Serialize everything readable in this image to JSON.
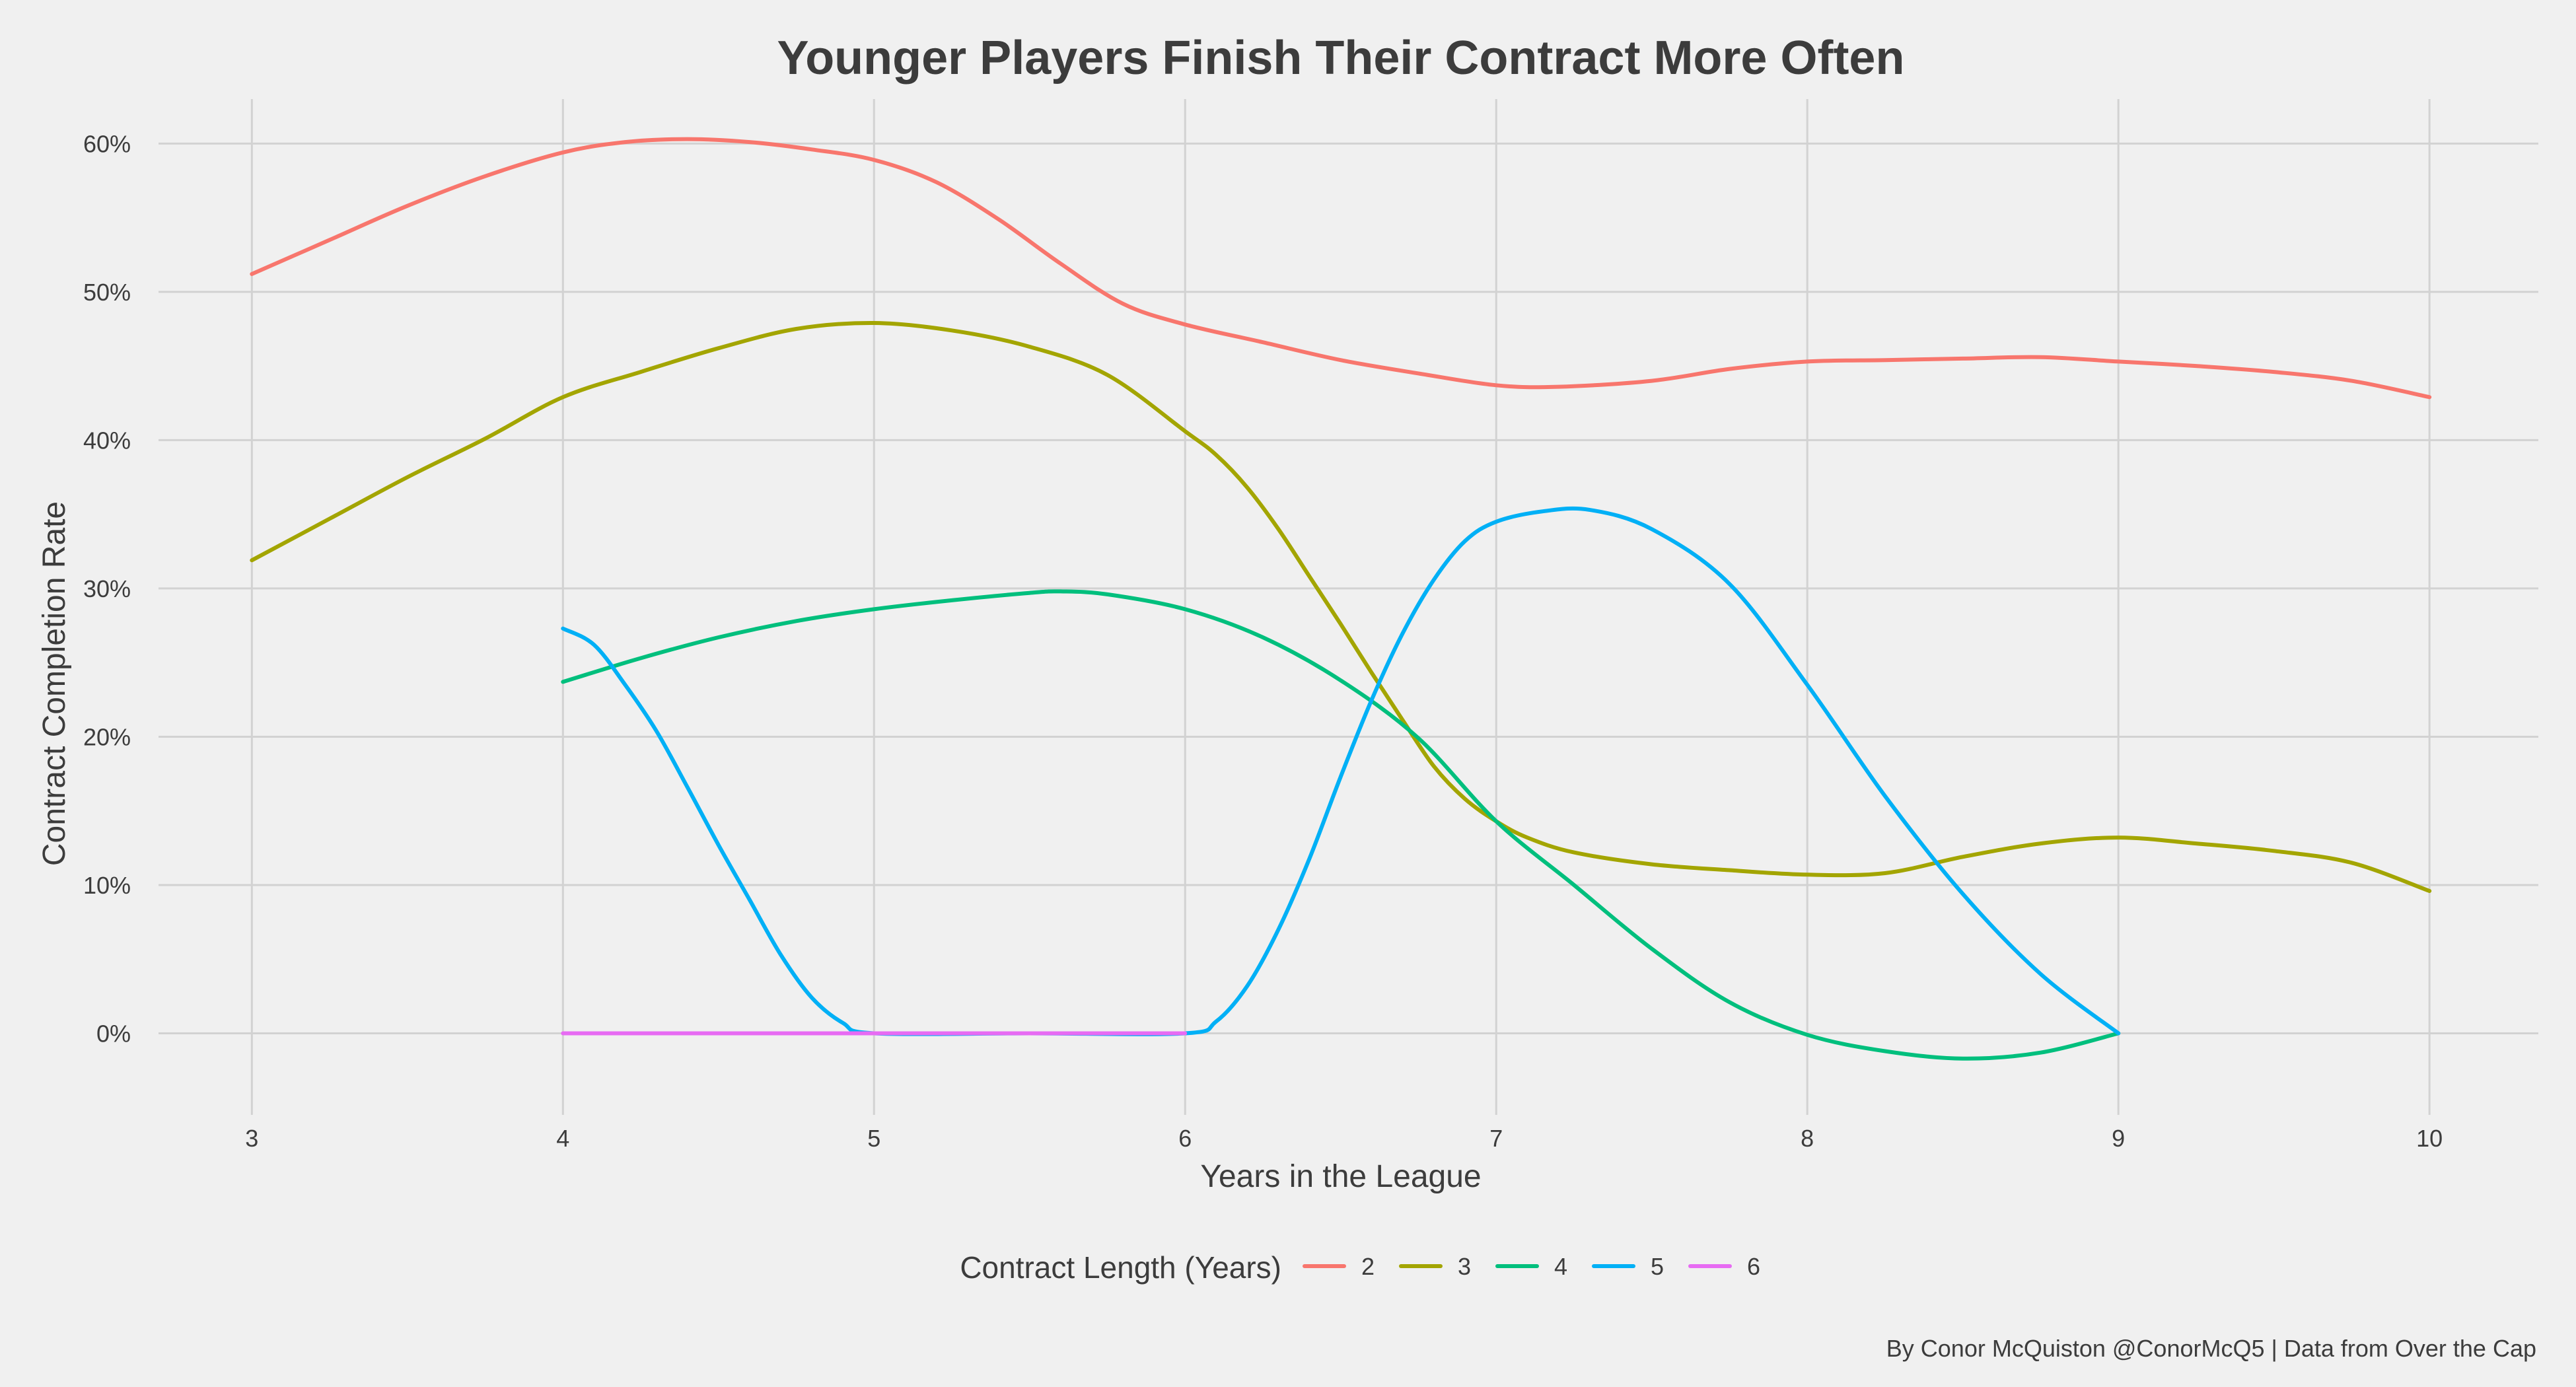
{
  "chart_data": {
    "type": "line",
    "title": "Younger Players Finish Their Contract More Often",
    "xlabel": "Years in the League",
    "ylabel": "Contract Completion Rate",
    "xlim": [
      2.7,
      10.35
    ],
    "ylim": [
      -0.055,
      0.63
    ],
    "x_ticks": [
      3,
      4,
      5,
      6,
      7,
      8,
      9,
      10
    ],
    "y_ticks": [
      0,
      0.1,
      0.2,
      0.3,
      0.4,
      0.5,
      0.6
    ],
    "y_tick_labels": [
      "0%",
      "10%",
      "20%",
      "30%",
      "40%",
      "50%",
      "60%"
    ],
    "grid": true,
    "legend": {
      "title": "Contract Length (Years)",
      "position": "bottom"
    },
    "series": [
      {
        "name": "2",
        "color": "#f8766d",
        "points": [
          [
            3,
            0.512
          ],
          [
            3.25,
            0.535
          ],
          [
            3.5,
            0.558
          ],
          [
            3.75,
            0.578
          ],
          [
            4,
            0.594
          ],
          [
            4.2,
            0.601
          ],
          [
            4.4,
            0.603
          ],
          [
            4.6,
            0.601
          ],
          [
            4.8,
            0.596
          ],
          [
            5,
            0.589
          ],
          [
            5.2,
            0.574
          ],
          [
            5.4,
            0.549
          ],
          [
            5.6,
            0.519
          ],
          [
            5.8,
            0.492
          ],
          [
            6,
            0.478
          ],
          [
            6.25,
            0.466
          ],
          [
            6.5,
            0.454
          ],
          [
            6.75,
            0.445
          ],
          [
            7,
            0.437
          ],
          [
            7.2,
            0.436
          ],
          [
            7.5,
            0.44
          ],
          [
            7.75,
            0.448
          ],
          [
            8,
            0.453
          ],
          [
            8.25,
            0.454
          ],
          [
            8.5,
            0.455
          ],
          [
            8.75,
            0.456
          ],
          [
            9,
            0.453
          ],
          [
            9.25,
            0.45
          ],
          [
            9.5,
            0.446
          ],
          [
            9.75,
            0.44
          ],
          [
            10,
            0.429
          ]
        ]
      },
      {
        "name": "3",
        "color": "#a3a500",
        "points": [
          [
            3,
            0.319
          ],
          [
            3.25,
            0.347
          ],
          [
            3.5,
            0.375
          ],
          [
            3.75,
            0.401
          ],
          [
            4,
            0.429
          ],
          [
            4.25,
            0.446
          ],
          [
            4.5,
            0.462
          ],
          [
            4.75,
            0.475
          ],
          [
            5,
            0.479
          ],
          [
            5.25,
            0.474
          ],
          [
            5.5,
            0.463
          ],
          [
            5.75,
            0.444
          ],
          [
            6,
            0.406
          ],
          [
            6.1,
            0.39
          ],
          [
            6.2,
            0.368
          ],
          [
            6.3,
            0.34
          ],
          [
            6.4,
            0.308
          ],
          [
            6.5,
            0.276
          ],
          [
            6.6,
            0.243
          ],
          [
            6.7,
            0.211
          ],
          [
            6.8,
            0.18
          ],
          [
            6.9,
            0.158
          ],
          [
            7,
            0.143
          ],
          [
            7.1,
            0.132
          ],
          [
            7.25,
            0.122
          ],
          [
            7.5,
            0.114
          ],
          [
            7.75,
            0.11
          ],
          [
            8,
            0.107
          ],
          [
            8.25,
            0.108
          ],
          [
            8.5,
            0.119
          ],
          [
            8.75,
            0.128
          ],
          [
            9,
            0.132
          ],
          [
            9.25,
            0.128
          ],
          [
            9.5,
            0.123
          ],
          [
            9.75,
            0.115
          ],
          [
            10,
            0.096
          ]
        ]
      },
      {
        "name": "4",
        "color": "#00bf7d",
        "points": [
          [
            4,
            0.237
          ],
          [
            4.25,
            0.253
          ],
          [
            4.5,
            0.267
          ],
          [
            4.75,
            0.278
          ],
          [
            5,
            0.286
          ],
          [
            5.25,
            0.292
          ],
          [
            5.5,
            0.297
          ],
          [
            5.6,
            0.298
          ],
          [
            5.75,
            0.296
          ],
          [
            6,
            0.286
          ],
          [
            6.25,
            0.267
          ],
          [
            6.5,
            0.238
          ],
          [
            6.75,
            0.199
          ],
          [
            7,
            0.143
          ],
          [
            7.25,
            0.1
          ],
          [
            7.5,
            0.057
          ],
          [
            7.75,
            0.021
          ],
          [
            8,
            -0.001
          ],
          [
            8.25,
            -0.012
          ],
          [
            8.5,
            -0.017
          ],
          [
            8.75,
            -0.013
          ],
          [
            9,
            0.0
          ]
        ]
      },
      {
        "name": "5",
        "color": "#00b0f6",
        "points": [
          [
            4,
            0.273
          ],
          [
            4.1,
            0.262
          ],
          [
            4.2,
            0.235
          ],
          [
            4.3,
            0.204
          ],
          [
            4.4,
            0.166
          ],
          [
            4.5,
            0.127
          ],
          [
            4.6,
            0.09
          ],
          [
            4.7,
            0.053
          ],
          [
            4.8,
            0.024
          ],
          [
            4.9,
            0.007
          ],
          [
            5,
            0.0
          ],
          [
            5.5,
            0.0
          ],
          [
            6,
            0.0
          ],
          [
            6.1,
            0.008
          ],
          [
            6.2,
            0.032
          ],
          [
            6.3,
            0.07
          ],
          [
            6.4,
            0.118
          ],
          [
            6.5,
            0.173
          ],
          [
            6.6,
            0.225
          ],
          [
            6.7,
            0.27
          ],
          [
            6.8,
            0.306
          ],
          [
            6.9,
            0.332
          ],
          [
            7,
            0.345
          ],
          [
            7.15,
            0.352
          ],
          [
            7.3,
            0.353
          ],
          [
            7.5,
            0.34
          ],
          [
            7.75,
            0.303
          ],
          [
            8,
            0.235
          ],
          [
            8.25,
            0.16
          ],
          [
            8.5,
            0.094
          ],
          [
            8.75,
            0.04
          ],
          [
            9,
            0.0
          ]
        ]
      },
      {
        "name": "6",
        "color": "#e76bf3",
        "points": [
          [
            4,
            0.0
          ],
          [
            5,
            0.0
          ],
          [
            6,
            0.0
          ]
        ]
      }
    ]
  },
  "caption": "By Conor McQuiston @ConorMcQ5 | Data from Over the Cap"
}
